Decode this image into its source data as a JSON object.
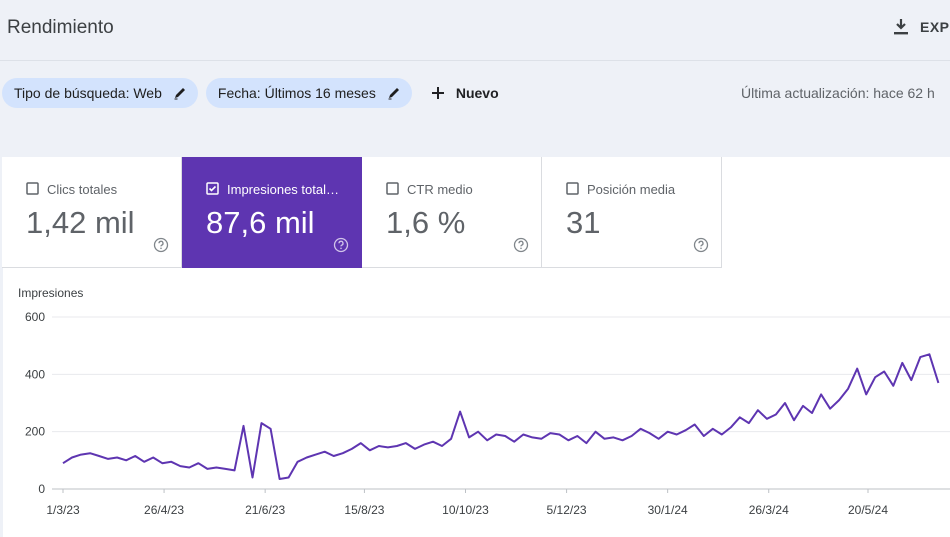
{
  "header": {
    "title": "Rendimiento",
    "export": "EXP"
  },
  "filters": {
    "chips": [
      "Tipo de búsqueda: Web",
      "Fecha: Últimos 16 meses"
    ],
    "add": "Nuevo",
    "last_update": "Última actualización: hace 62 h"
  },
  "metrics": [
    {
      "label": "Clics totales",
      "value": "1,42 mil",
      "checked": false
    },
    {
      "label": "Impresiones total…",
      "value": "87,6 mil",
      "checked": true
    },
    {
      "label": "CTR medio",
      "value": "1,6 %",
      "checked": false
    },
    {
      "label": "Posición media",
      "value": "31",
      "checked": false
    }
  ],
  "chart_data": {
    "type": "line",
    "y_label": "Impresiones",
    "color": "#5e35b1",
    "grid": true,
    "x": [
      "1/3/23",
      "6/3/23",
      "11/3/23",
      "16/3/23",
      "21/3/23",
      "26/3/23",
      "31/3/23",
      "5/4/23",
      "10/4/23",
      "15/4/23",
      "20/4/23",
      "25/4/23",
      "30/4/23",
      "5/5/23",
      "10/5/23",
      "15/5/23",
      "20/5/23",
      "25/5/23",
      "30/5/23",
      "4/6/23",
      "9/6/23",
      "14/6/23",
      "19/6/23",
      "24/6/23",
      "29/6/23",
      "4/7/23",
      "9/7/23",
      "14/7/23",
      "19/7/23",
      "24/7/23",
      "29/7/23",
      "3/8/23",
      "8/8/23",
      "13/8/23",
      "18/8/23",
      "23/8/23",
      "28/8/23",
      "2/9/23",
      "7/9/23",
      "12/9/23",
      "17/9/23",
      "22/9/23",
      "27/9/23",
      "2/10/23",
      "7/10/23",
      "12/10/23",
      "17/10/23",
      "22/10/23",
      "27/10/23",
      "1/11/23",
      "6/11/23",
      "11/11/23",
      "16/11/23",
      "21/11/23",
      "26/11/23",
      "1/12/23",
      "6/12/23",
      "11/12/23",
      "16/12/23",
      "21/12/23",
      "26/12/23",
      "31/12/23",
      "5/1/24",
      "10/1/24",
      "15/1/24",
      "20/1/24",
      "25/1/24",
      "30/1/24",
      "4/2/24",
      "9/2/24",
      "14/2/24",
      "19/2/24",
      "24/2/24",
      "29/2/24",
      "5/3/24",
      "10/3/24",
      "15/3/24",
      "20/3/24",
      "25/3/24",
      "30/3/24",
      "4/4/24",
      "9/4/24",
      "14/4/24",
      "19/4/24",
      "24/4/24",
      "29/4/24",
      "4/5/24",
      "9/5/24",
      "14/5/24",
      "19/5/24",
      "24/5/24",
      "29/5/24",
      "3/6/24",
      "8/6/24",
      "13/6/24",
      "18/6/24",
      "23/6/24",
      "28/6/24"
    ],
    "values": [
      90,
      110,
      120,
      125,
      115,
      105,
      110,
      100,
      115,
      95,
      110,
      90,
      95,
      80,
      75,
      90,
      70,
      75,
      70,
      65,
      220,
      40,
      230,
      210,
      35,
      40,
      95,
      110,
      120,
      130,
      115,
      125,
      140,
      160,
      135,
      150,
      145,
      150,
      160,
      140,
      155,
      165,
      150,
      175,
      270,
      180,
      200,
      170,
      190,
      185,
      165,
      190,
      180,
      175,
      195,
      190,
      170,
      185,
      160,
      200,
      175,
      180,
      170,
      185,
      210,
      195,
      175,
      200,
      190,
      205,
      225,
      185,
      210,
      190,
      215,
      250,
      230,
      275,
      245,
      260,
      300,
      240,
      290,
      265,
      330,
      280,
      310,
      350,
      420,
      330,
      390,
      410,
      360,
      440,
      380,
      460,
      470,
      370
    ],
    "ylim": [
      0,
      600
    ],
    "yticks": [
      0,
      200,
      400,
      600
    ],
    "xticks": [
      "1/3/23",
      "26/4/23",
      "21/6/23",
      "15/8/23",
      "10/10/23",
      "5/12/23",
      "30/1/24",
      "26/3/24",
      "20/5/24"
    ]
  }
}
